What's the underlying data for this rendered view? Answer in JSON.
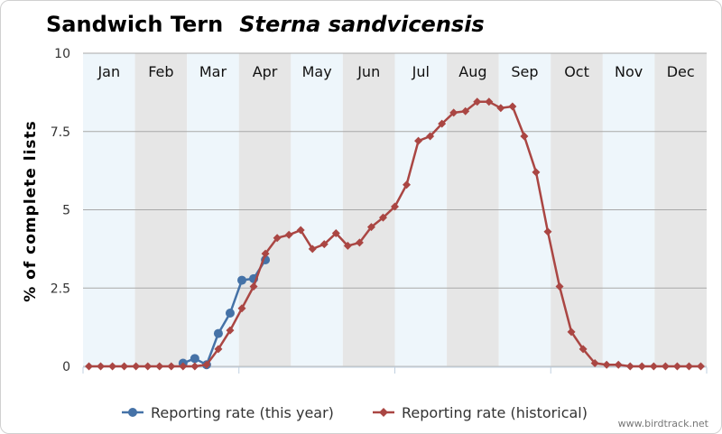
{
  "chart_data": {
    "type": "line",
    "title": "Sandwich Tern",
    "title_species": "Sterna sandvicensis",
    "ylabel": "% of complete lists",
    "ylim": [
      0,
      10
    ],
    "y_ticks": [
      "0",
      "2.5",
      "5",
      "7.5",
      "10"
    ],
    "y_tick_values": [
      0,
      2.5,
      5,
      7.5,
      10
    ],
    "categories": [
      "Jan",
      "Feb",
      "Mar",
      "Apr",
      "May",
      "Jun",
      "Jul",
      "Aug",
      "Sep",
      "Oct",
      "Nov",
      "Dec"
    ],
    "grid": true,
    "legend_position": "bottom",
    "series": [
      {
        "name": "Reporting rate (this year)",
        "marker": "circle",
        "color": "#4572a7",
        "x": [
          9,
          10,
          11,
          12,
          13,
          14,
          15,
          16
        ],
        "y": [
          0.1,
          0.25,
          0.05,
          1.05,
          1.7,
          2.75,
          2.8,
          3.4
        ]
      },
      {
        "name": "Reporting rate (historical)",
        "marker": "diamond",
        "color": "#aa4643",
        "x": [
          1,
          2,
          3,
          4,
          5,
          6,
          7,
          8,
          9,
          10,
          11,
          12,
          13,
          14,
          15,
          16,
          17,
          18,
          19,
          20,
          21,
          22,
          23,
          24,
          25,
          26,
          27,
          28,
          29,
          30,
          31,
          32,
          33,
          34,
          35,
          36,
          37,
          38,
          39,
          40,
          41,
          42,
          43,
          44,
          45,
          46,
          47,
          48,
          49,
          50,
          51,
          52,
          53
        ],
        "y": [
          0,
          0,
          0,
          0,
          0,
          0,
          0,
          0,
          0,
          0,
          0.05,
          0.55,
          1.15,
          1.85,
          2.55,
          3.6,
          4.1,
          4.2,
          4.35,
          3.75,
          3.9,
          4.25,
          3.85,
          3.95,
          4.45,
          4.75,
          5.1,
          5.8,
          7.2,
          7.35,
          7.75,
          8.1,
          8.15,
          8.45,
          8.45,
          8.25,
          8.3,
          7.35,
          6.2,
          4.3,
          2.55,
          1.1,
          0.55,
          0.1,
          0.05,
          0.05,
          0,
          0,
          0,
          0,
          0,
          0,
          0
        ]
      }
    ]
  },
  "credit": "www.birdtrack.net"
}
